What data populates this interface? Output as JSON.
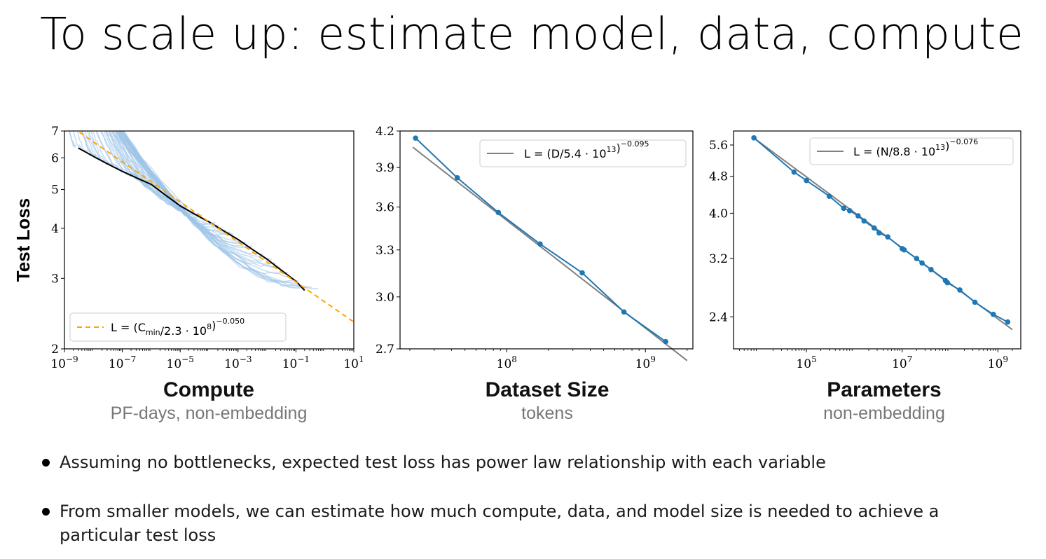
{
  "slide": {
    "title": "To scale up: estimate model, data, compute",
    "bullets": [
      "Assuming no bottlenecks, expected test loss has power law relationship with each variable",
      "From smaller models, we can estimate how much compute, data, and model size is needed to achieve a particular test loss"
    ]
  },
  "colors": {
    "blue": "#1f77b4",
    "lightblue": "#9ec5e8",
    "orange": "#ffa500",
    "gray": "#808080",
    "frontier": "#000000"
  },
  "chart_data": [
    {
      "type": "line",
      "xscale": "log",
      "yscale": "log",
      "ylabel": "Test Loss",
      "xlabel": "Compute",
      "xlabel_sub": "PF-days, non-embedding",
      "xlim": [
        1e-09,
        10
      ],
      "ylim": [
        2,
        7
      ],
      "xticks": [
        "10^-9",
        "10^-7",
        "10^-5",
        "10^-3",
        "10^-1",
        "10^1"
      ],
      "yticks": [
        "2",
        "3",
        "4",
        "5",
        "6",
        "7"
      ],
      "legend_position": "lower-left",
      "legend": "L = (C_min/2.3 · 10^8)^-0.050",
      "fit": {
        "name": "L = (C_min/2.3 · 10^8)^-0.050",
        "coef": 230000000.0,
        "exponent": -0.05,
        "x_range": [
          1.1e-09,
          10
        ]
      },
      "frontier": {
        "x": [
          3e-09,
          1e-08,
          3e-08,
          1e-07,
          3e-07,
          1e-06,
          3e-06,
          1e-05,
          3e-05,
          0.0001,
          0.0003,
          0.001,
          0.003,
          0.01,
          0.03,
          0.1,
          0.2
        ],
        "y": [
          6.35,
          6.05,
          5.8,
          5.55,
          5.35,
          5.15,
          4.85,
          4.55,
          4.35,
          4.15,
          3.95,
          3.75,
          3.55,
          3.35,
          3.15,
          2.95,
          2.8
        ]
      },
      "runs_count": 60
    },
    {
      "type": "line",
      "xscale": "log",
      "yscale": "log",
      "xlabel": "Dataset Size",
      "xlabel_sub": "tokens",
      "xlim": [
        17000000.0,
        2200000000.0
      ],
      "ylim": [
        2.7,
        4.2
      ],
      "xticks": [
        "10^8",
        "10^9"
      ],
      "yticks": [
        "2.7",
        "3.0",
        "3.3",
        "3.6",
        "3.9",
        "4.2"
      ],
      "legend_position": "upper-right",
      "legend": "L = (D/5.4 · 10^13)^-0.095",
      "fit": {
        "name": "L = (D/5.4 · 10^13)^-0.095",
        "coef": 54000000000000.0,
        "exponent": -0.095,
        "x_range": [
          21000000.0,
          2000000000.0
        ]
      },
      "series": [
        {
          "x": [
            22000000.0,
            44000000.0,
            87000000.0,
            174000000.0,
            350000000.0,
            700000000.0,
            1400000000.0
          ],
          "y": [
            4.14,
            3.82,
            3.56,
            3.34,
            3.15,
            2.91,
            2.74
          ]
        }
      ]
    },
    {
      "type": "line",
      "xscale": "log",
      "yscale": "log",
      "xlabel": "Parameters",
      "xlabel_sub": "non-embedding",
      "xlim": [
        3000.0,
        3000000000.0
      ],
      "ylim": [
        2.05,
        6.0
      ],
      "xticks": [
        "10^5",
        "10^7",
        "10^9"
      ],
      "yticks": [
        "2.4",
        "3.2",
        "4.0",
        "4.8",
        "5.6"
      ],
      "legend_position": "upper-right",
      "legend": "L = (N/8.8 · 10^13)^-0.076",
      "fit": {
        "name": "L = (N/8.8 · 10^13)^-0.076",
        "coef": 88000000000000.0,
        "exponent": -0.076,
        "x_range": [
          8000.0,
          2000000000.0
        ]
      },
      "series": [
        {
          "x": [
            8000.0,
            55000.0,
            100000.0,
            300000.0,
            600000.0,
            800000.0,
            1200000.0,
            1600000.0,
            2600000.0,
            3300000.0,
            5000000.0,
            10000000.0,
            11000000.0,
            20000000.0,
            26000000.0,
            40000000.0,
            80000000.0,
            88000000.0,
            160000000.0,
            330000000.0,
            800000000.0,
            1600000000.0
          ],
          "y": [
            5.8,
            4.9,
            4.7,
            4.35,
            4.1,
            4.05,
            3.95,
            3.85,
            3.72,
            3.63,
            3.56,
            3.36,
            3.34,
            3.2,
            3.13,
            3.03,
            2.87,
            2.84,
            2.74,
            2.58,
            2.43,
            2.34
          ]
        }
      ]
    }
  ]
}
